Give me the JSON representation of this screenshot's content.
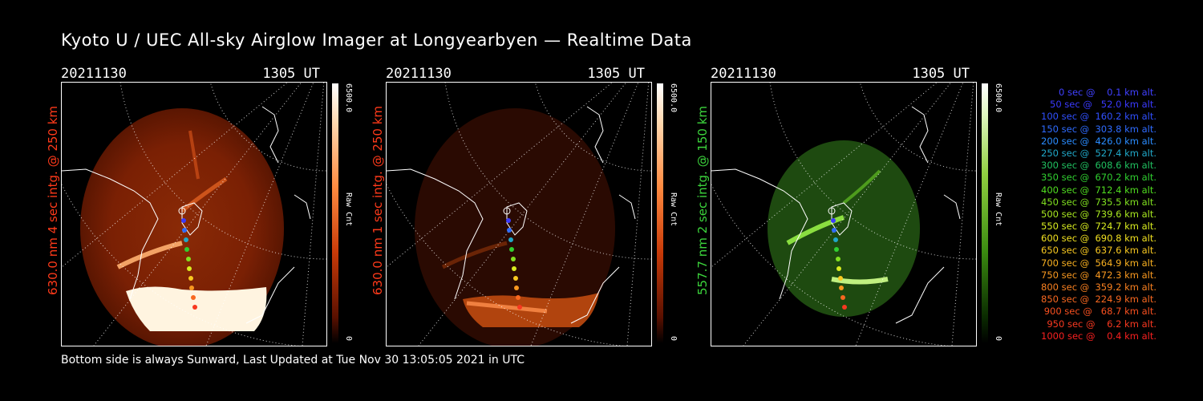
{
  "title": "Kyoto U / UEC All-sky Airglow Imager at Longyearbyen — Realtime Data",
  "panels": [
    {
      "date": "20211130",
      "time": "1305 UT",
      "side_label": "630.0 nm 4 sec intg. @ 250 km",
      "side_color": "#ff3a1a",
      "cbar_max": "6500.0",
      "cbar_unit": "Raw Cnt",
      "cbar_min": "0",
      "palette": "red"
    },
    {
      "date": "20211130",
      "time": "1305 UT",
      "side_label": "630.0 nm 1 sec intg. @ 250 km",
      "side_color": "#ff3a1a",
      "cbar_max": "6500.0",
      "cbar_unit": "Raw Cnt",
      "cbar_min": "0",
      "palette": "red"
    },
    {
      "date": "20211130",
      "time": "1305 UT",
      "side_label": "557.7 nm 2 sec intg. @ 150 km",
      "side_color": "#3cd43c",
      "cbar_max": "6500.0",
      "cbar_unit": "Raw Cnt",
      "cbar_min": "0",
      "palette": "green"
    }
  ],
  "legend": [
    {
      "text": "0 sec @    0.1 km alt.",
      "color": "#4040ff"
    },
    {
      "text": "50 sec @   52.0 km alt.",
      "color": "#3a3aff"
    },
    {
      "text": "100 sec @  160.2 km alt.",
      "color": "#3050ff"
    },
    {
      "text": "150 sec @  303.8 km alt.",
      "color": "#2f6cff"
    },
    {
      "text": "200 sec @  426.0 km alt.",
      "color": "#2a8cff"
    },
    {
      "text": "250 sec @  527.4 km alt.",
      "color": "#20a8c8"
    },
    {
      "text": "300 sec @  608.6 km alt.",
      "color": "#20c060"
    },
    {
      "text": "350 sec @  670.2 km alt.",
      "color": "#30d030"
    },
    {
      "text": "400 sec @  712.4 km alt.",
      "color": "#50dc20"
    },
    {
      "text": "450 sec @  735.5 km alt.",
      "color": "#80e020"
    },
    {
      "text": "500 sec @  739.6 km alt.",
      "color": "#a8e820"
    },
    {
      "text": "550 sec @  724.7 km alt.",
      "color": "#d8ec20"
    },
    {
      "text": "600 sec @  690.8 km alt.",
      "color": "#f0e020"
    },
    {
      "text": "650 sec @  637.6 km alt.",
      "color": "#f8c820"
    },
    {
      "text": "700 sec @  564.9 km alt.",
      "color": "#f8b020"
    },
    {
      "text": "750 sec @  472.3 km alt.",
      "color": "#f89820"
    },
    {
      "text": "800 sec @  359.2 km alt.",
      "color": "#f88020"
    },
    {
      "text": "850 sec @  224.9 km alt.",
      "color": "#f86820"
    },
    {
      "text": "900 sec @   68.7 km alt.",
      "color": "#f85020"
    },
    {
      "text": "950 sec @    6.2 km alt.",
      "color": "#f83820"
    },
    {
      "text": "1000 sec @    0.4 km alt.",
      "color": "#f82020"
    }
  ],
  "footer": "Bottom side is always Sunward, Last Updated at Tue Nov 30 13:05:05 2021 in UTC"
}
